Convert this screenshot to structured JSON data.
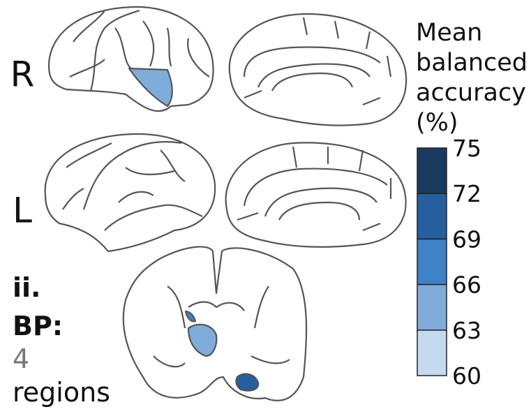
{
  "hemisphere_labels": [
    "R",
    "L"
  ],
  "panel": {
    "label": "ii.",
    "method": "BP:",
    "count": "4",
    "unit": "regions"
  },
  "legend": {
    "title_lines": [
      "Mean",
      "balanced",
      "accuracy",
      "(%)"
    ],
    "ticks": [
      "75",
      "72",
      "69",
      "66",
      "63",
      "60"
    ],
    "colors": [
      "#1b3a5f",
      "#255f9d",
      "#3f82c7",
      "#80acd9",
      "#c5d9ef"
    ]
  }
}
